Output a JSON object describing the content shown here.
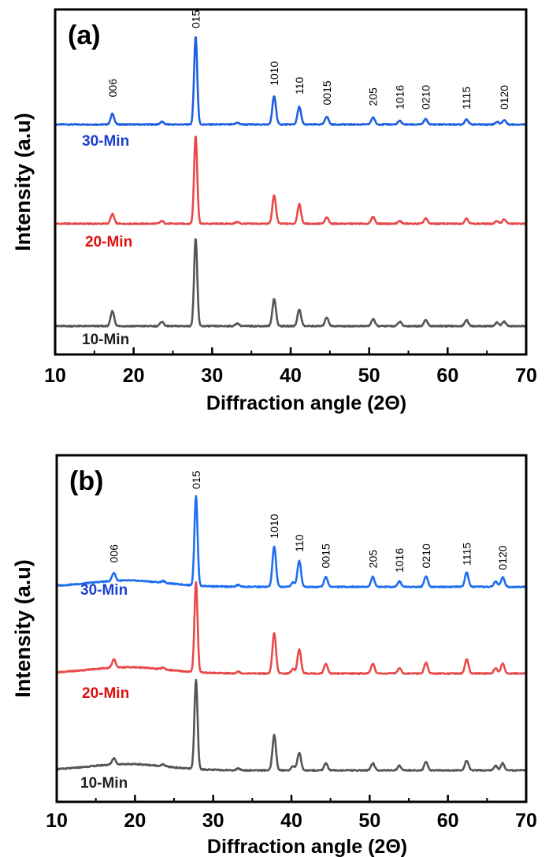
{
  "chart_data": [
    {
      "type": "line",
      "panel_label": "(a)",
      "xlabel": "Diffraction angle (2Θ)",
      "ylabel": "Intensity (a.u)",
      "xlim": [
        10,
        70
      ],
      "xticks": [
        10,
        20,
        30,
        40,
        50,
        60,
        70
      ],
      "grid": false,
      "peak_labels": [
        {
          "text": "006",
          "x": 17.3,
          "intensity": 0.22
        },
        {
          "text": "015",
          "x": 27.9,
          "intensity": 1.0
        },
        {
          "text": "1010",
          "x": 37.9,
          "intensity": 0.35
        },
        {
          "text": "110",
          "x": 41.1,
          "intensity": 0.25
        },
        {
          "text": "0015",
          "x": 44.6,
          "intensity": 0.13
        },
        {
          "text": "205",
          "x": 50.5,
          "intensity": 0.12
        },
        {
          "text": "1016",
          "x": 53.9,
          "intensity": 0.08
        },
        {
          "text": "0210",
          "x": 57.2,
          "intensity": 0.08
        },
        {
          "text": "1115",
          "x": 62.4,
          "intensity": 0.08
        },
        {
          "text": "0120",
          "x": 67.2,
          "intensity": 0.08
        }
      ],
      "series": [
        {
          "name": "30-Min",
          "color": "#1f5fe0",
          "label_color": "#1a3fcf",
          "baseline": 0.0,
          "scale": 1.0,
          "peaks": [
            [
              17.3,
              0.12
            ],
            [
              23.6,
              0.03
            ],
            [
              27.9,
              1.0
            ],
            [
              33.2,
              0.02
            ],
            [
              37.9,
              0.32
            ],
            [
              41.1,
              0.2
            ],
            [
              44.6,
              0.09
            ],
            [
              50.5,
              0.08
            ],
            [
              53.9,
              0.04
            ],
            [
              57.2,
              0.06
            ],
            [
              62.4,
              0.06
            ],
            [
              66.3,
              0.03
            ],
            [
              67.2,
              0.05
            ]
          ]
        },
        {
          "name": "20-Min",
          "color": "#e84a4a",
          "label_color": "#e01010",
          "baseline": 0.0,
          "scale": 1.0,
          "peaks": [
            [
              17.3,
              0.11
            ],
            [
              23.6,
              0.03
            ],
            [
              27.9,
              1.0
            ],
            [
              33.2,
              0.02
            ],
            [
              37.9,
              0.32
            ],
            [
              41.1,
              0.22
            ],
            [
              44.6,
              0.07
            ],
            [
              50.5,
              0.08
            ],
            [
              53.9,
              0.03
            ],
            [
              57.2,
              0.06
            ],
            [
              62.4,
              0.06
            ],
            [
              66.3,
              0.03
            ],
            [
              67.2,
              0.05
            ]
          ]
        },
        {
          "name": "10-Min",
          "color": "#555555",
          "label_color": "#222222",
          "baseline": 0.0,
          "scale": 1.0,
          "peaks": [
            [
              17.3,
              0.17
            ],
            [
              23.6,
              0.05
            ],
            [
              27.9,
              1.0
            ],
            [
              33.2,
              0.03
            ],
            [
              37.9,
              0.31
            ],
            [
              41.1,
              0.19
            ],
            [
              44.6,
              0.1
            ],
            [
              50.5,
              0.08
            ],
            [
              53.9,
              0.05
            ],
            [
              57.2,
              0.07
            ],
            [
              62.4,
              0.07
            ],
            [
              66.3,
              0.04
            ],
            [
              67.2,
              0.05
            ]
          ]
        }
      ]
    },
    {
      "type": "line",
      "panel_label": "(b)",
      "xlabel": "Diffraction angle (2Θ)",
      "ylabel": "Intensity (a.u)",
      "xlim": [
        10,
        70
      ],
      "xticks": [
        10,
        20,
        30,
        40,
        50,
        60,
        70
      ],
      "grid": false,
      "peak_labels": [
        {
          "text": "006",
          "x": 17.3,
          "intensity": 0.18
        },
        {
          "text": "015",
          "x": 27.8,
          "intensity": 1.0
        },
        {
          "text": "1010",
          "x": 37.8,
          "intensity": 0.45
        },
        {
          "text": "110",
          "x": 41.0,
          "intensity": 0.3
        },
        {
          "text": "0015",
          "x": 44.4,
          "intensity": 0.12
        },
        {
          "text": "205",
          "x": 50.4,
          "intensity": 0.12
        },
        {
          "text": "1016",
          "x": 53.8,
          "intensity": 0.07
        },
        {
          "text": "0210",
          "x": 57.2,
          "intensity": 0.12
        },
        {
          "text": "1115",
          "x": 62.4,
          "intensity": 0.15
        },
        {
          "text": "0120",
          "x": 67.0,
          "intensity": 0.1
        }
      ],
      "series": [
        {
          "name": "30-Min",
          "color": "#1f6ff0",
          "label_color": "#1a3fcf",
          "peaks": [
            [
              17.3,
              0.09
            ],
            [
              23.6,
              0.02
            ],
            [
              27.8,
              1.0
            ],
            [
              33.2,
              0.02
            ],
            [
              37.8,
              0.45
            ],
            [
              40.2,
              0.05
            ],
            [
              41.0,
              0.29
            ],
            [
              44.4,
              0.11
            ],
            [
              50.4,
              0.11
            ],
            [
              53.8,
              0.06
            ],
            [
              57.2,
              0.12
            ],
            [
              62.4,
              0.16
            ],
            [
              66.1,
              0.06
            ],
            [
              67.0,
              0.11
            ]
          ]
        },
        {
          "name": "20-Min",
          "color": "#e84a4a",
          "label_color": "#e01010",
          "peaks": [
            [
              17.3,
              0.09
            ],
            [
              23.6,
              0.02
            ],
            [
              27.8,
              1.0
            ],
            [
              33.2,
              0.02
            ],
            [
              37.8,
              0.45
            ],
            [
              40.2,
              0.05
            ],
            [
              41.0,
              0.27
            ],
            [
              44.4,
              0.11
            ],
            [
              50.4,
              0.11
            ],
            [
              53.8,
              0.06
            ],
            [
              57.2,
              0.12
            ],
            [
              62.4,
              0.16
            ],
            [
              66.1,
              0.06
            ],
            [
              67.0,
              0.11
            ]
          ]
        },
        {
          "name": "10-Min",
          "color": "#555555",
          "label_color": "#222222",
          "peaks": [
            [
              17.3,
              0.07
            ],
            [
              23.6,
              0.02
            ],
            [
              27.8,
              1.0
            ],
            [
              33.2,
              0.02
            ],
            [
              37.8,
              0.39
            ],
            [
              40.2,
              0.05
            ],
            [
              41.0,
              0.2
            ],
            [
              44.4,
              0.08
            ],
            [
              50.4,
              0.08
            ],
            [
              53.8,
              0.05
            ],
            [
              57.2,
              0.09
            ],
            [
              62.4,
              0.11
            ],
            [
              66.1,
              0.05
            ],
            [
              67.0,
              0.08
            ]
          ]
        }
      ]
    }
  ]
}
